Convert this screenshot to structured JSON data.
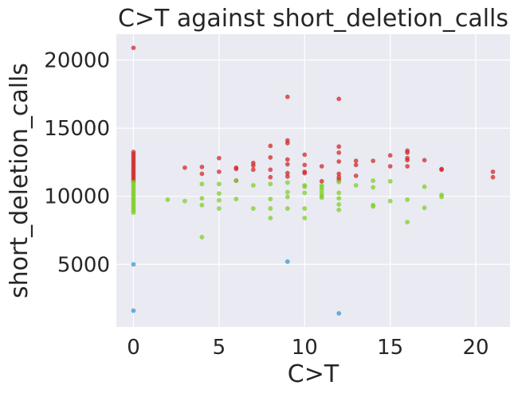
{
  "chart_data": {
    "type": "scatter",
    "title": "C>T against short_deletion_calls",
    "xlabel": "C>T",
    "ylabel": "short_deletion_calls",
    "xlim": [
      -1,
      22
    ],
    "ylim": [
      400,
      21900
    ],
    "xticks": [
      0,
      5,
      10,
      15,
      20
    ],
    "yticks": [
      5000,
      10000,
      15000,
      20000
    ],
    "grid": true,
    "legend": "none",
    "colors": {
      "red": "#d62728",
      "green": "#7ed321",
      "blue": "#3498db",
      "background": "#eaeaf2"
    },
    "series": [
      {
        "color": "#d62728",
        "points": [
          [
            0,
            20900
          ],
          [
            0,
            13250
          ],
          [
            0,
            13100
          ],
          [
            0,
            12950
          ],
          [
            0,
            12800
          ],
          [
            0,
            12650
          ],
          [
            0,
            12500
          ],
          [
            0,
            12350
          ],
          [
            0,
            12200
          ],
          [
            0,
            12050
          ],
          [
            0,
            11900
          ],
          [
            0,
            11750
          ],
          [
            0,
            11600
          ],
          [
            0,
            11450
          ],
          [
            0,
            11300
          ],
          [
            0,
            11150
          ],
          [
            3,
            12100
          ],
          [
            4,
            12150
          ],
          [
            4,
            11650
          ],
          [
            5,
            12800
          ],
          [
            5,
            11800
          ],
          [
            6,
            12100
          ],
          [
            6,
            12000
          ],
          [
            6,
            11150
          ],
          [
            7,
            12450
          ],
          [
            7,
            12250
          ],
          [
            7,
            11950
          ],
          [
            8,
            13700
          ],
          [
            8,
            12850
          ],
          [
            8,
            11950
          ],
          [
            8,
            11400
          ],
          [
            9,
            17300
          ],
          [
            9,
            14100
          ],
          [
            9,
            13900
          ],
          [
            9,
            12700
          ],
          [
            9,
            12350
          ],
          [
            9,
            11700
          ],
          [
            9,
            11450
          ],
          [
            10,
            13050
          ],
          [
            10,
            12300
          ],
          [
            10,
            11800
          ],
          [
            10,
            11700
          ],
          [
            11,
            12200
          ],
          [
            11,
            11100
          ],
          [
            12,
            17150
          ],
          [
            12,
            13650
          ],
          [
            12,
            13200
          ],
          [
            12,
            12550
          ],
          [
            12,
            11650
          ],
          [
            12,
            11400
          ],
          [
            12,
            11200
          ],
          [
            13,
            12600
          ],
          [
            13,
            12300
          ],
          [
            13,
            11500
          ],
          [
            14,
            12600
          ],
          [
            15,
            13000
          ],
          [
            15,
            12200
          ],
          [
            16,
            13350
          ],
          [
            16,
            13200
          ],
          [
            16,
            12800
          ],
          [
            16,
            12650
          ],
          [
            16,
            12200
          ],
          [
            17,
            12650
          ],
          [
            18,
            12000
          ],
          [
            18,
            11950
          ],
          [
            21,
            11800
          ],
          [
            21,
            11400
          ]
        ]
      },
      {
        "color": "#7ed321",
        "points": [
          [
            0,
            11050
          ],
          [
            0,
            10900
          ],
          [
            0,
            10750
          ],
          [
            0,
            10600
          ],
          [
            0,
            10450
          ],
          [
            0,
            10300
          ],
          [
            0,
            10150
          ],
          [
            0,
            10000
          ],
          [
            0,
            9850
          ],
          [
            0,
            9700
          ],
          [
            0,
            9550
          ],
          [
            0,
            9400
          ],
          [
            0,
            9250
          ],
          [
            0,
            9100
          ],
          [
            0,
            8950
          ],
          [
            0,
            8800
          ],
          [
            2,
            9750
          ],
          [
            3,
            9650
          ],
          [
            4,
            10900
          ],
          [
            4,
            9850
          ],
          [
            4,
            9350
          ],
          [
            4,
            7000
          ],
          [
            5,
            10900
          ],
          [
            5,
            10200
          ],
          [
            5,
            9700
          ],
          [
            5,
            9100
          ],
          [
            6,
            11150
          ],
          [
            6,
            9800
          ],
          [
            7,
            10800
          ],
          [
            7,
            9100
          ],
          [
            8,
            10900
          ],
          [
            8,
            9800
          ],
          [
            8,
            9100
          ],
          [
            8,
            8400
          ],
          [
            9,
            11000
          ],
          [
            9,
            10300
          ],
          [
            9,
            9950
          ],
          [
            9,
            9100
          ],
          [
            10,
            10800
          ],
          [
            10,
            10700
          ],
          [
            10,
            10250
          ],
          [
            10,
            9100
          ],
          [
            10,
            8400
          ],
          [
            11,
            10800
          ],
          [
            11,
            10650
          ],
          [
            11,
            10450
          ],
          [
            11,
            10200
          ],
          [
            11,
            10000
          ],
          [
            11,
            9900
          ],
          [
            12,
            11050
          ],
          [
            12,
            10250
          ],
          [
            12,
            9850
          ],
          [
            12,
            9400
          ],
          [
            12,
            9000
          ],
          [
            13,
            10800
          ],
          [
            14,
            11150
          ],
          [
            14,
            10650
          ],
          [
            14,
            9350
          ],
          [
            14,
            9250
          ],
          [
            15,
            11100
          ],
          [
            15,
            9650
          ],
          [
            16,
            9750
          ],
          [
            16,
            8100
          ],
          [
            17,
            10700
          ],
          [
            17,
            9150
          ],
          [
            18,
            10100
          ],
          [
            18,
            9950
          ]
        ]
      },
      {
        "color": "#3498db",
        "points": [
          [
            0,
            5000
          ],
          [
            0,
            1600
          ],
          [
            9,
            5200
          ],
          [
            12,
            1400
          ]
        ]
      }
    ]
  }
}
